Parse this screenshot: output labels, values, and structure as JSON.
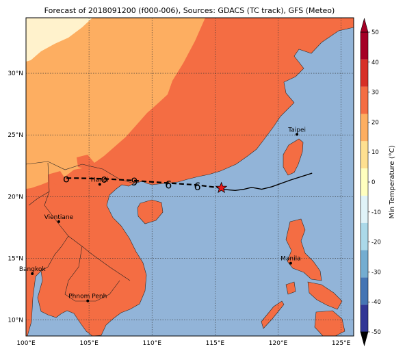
{
  "title": "Forecast of 2018091200 (f000-006), Sources: GDACS (TC track), GFS (Meteo)",
  "map": {
    "lon_range": [
      100,
      126
    ],
    "lat_range": [
      8.7,
      34.5
    ],
    "lon_ticks": [
      {
        "value": 100,
        "label": "100°E"
      },
      {
        "value": 105,
        "label": "105°E"
      },
      {
        "value": 110,
        "label": "110°E"
      },
      {
        "value": 115,
        "label": "115°E"
      },
      {
        "value": 120,
        "label": "120°E"
      },
      {
        "value": 125,
        "label": "125°E"
      }
    ],
    "lat_ticks": [
      {
        "value": 10,
        "label": "10°N"
      },
      {
        "value": 15,
        "label": "15°N"
      },
      {
        "value": 20,
        "label": "20°N"
      },
      {
        "value": 25,
        "label": "25°N"
      },
      {
        "value": 30,
        "label": "30°N"
      }
    ],
    "grid": "dotted",
    "ocean_color": "#92b4d8",
    "cities": [
      {
        "name": "Taipei",
        "lon": 121.5,
        "lat": 25.05
      },
      {
        "name": "Hanoi",
        "lon": 105.85,
        "lat": 21.0
      },
      {
        "name": "Vientiane",
        "lon": 102.6,
        "lat": 17.97
      },
      {
        "name": "Manila",
        "lon": 121.0,
        "lat": 14.6
      },
      {
        "name": "Bangkok",
        "lon": 100.5,
        "lat": 13.75
      },
      {
        "name": "Phnom Penh",
        "lon": 104.9,
        "lat": 11.55
      }
    ],
    "observed_track": [
      [
        122.7,
        21.9
      ],
      [
        121.0,
        21.35
      ],
      [
        119.5,
        20.8
      ],
      [
        118.7,
        20.6
      ],
      [
        117.9,
        20.75
      ],
      [
        117.3,
        20.6
      ],
      [
        116.6,
        20.5
      ],
      [
        115.5,
        20.6
      ]
    ],
    "current_position": {
      "lon": 115.5,
      "lat": 20.7
    },
    "forecast_track": [
      [
        115.5,
        20.7
      ],
      [
        113.5,
        20.95
      ],
      [
        111.3,
        21.1
      ],
      [
        108.6,
        21.3
      ],
      [
        106.2,
        21.45
      ],
      [
        104.0,
        21.5
      ],
      [
        103.2,
        21.5
      ]
    ],
    "forecast_symbols": [
      {
        "lon": 113.6,
        "lat": 20.85,
        "glyph": "6"
      },
      {
        "lon": 111.3,
        "lat": 21.0,
        "glyph": "6"
      },
      {
        "lon": 108.6,
        "lat": 21.25,
        "glyph": "9"
      },
      {
        "lon": 106.2,
        "lat": 21.45,
        "glyph": "o"
      },
      {
        "lon": 103.2,
        "lat": 21.5,
        "glyph": "o"
      }
    ]
  },
  "colorbar": {
    "label": "Min Temperature (°C)",
    "min": -50,
    "max": 50,
    "ticks": [
      -50,
      -40,
      -30,
      -20,
      -10,
      0,
      10,
      20,
      30,
      40,
      50
    ],
    "colors": [
      "#313695",
      "#4575b4",
      "#74add1",
      "#abd9e9",
      "#e0f3f8",
      "#ffffbf",
      "#fee090",
      "#fdae61",
      "#f46d43",
      "#d73027",
      "#a50026"
    ]
  }
}
